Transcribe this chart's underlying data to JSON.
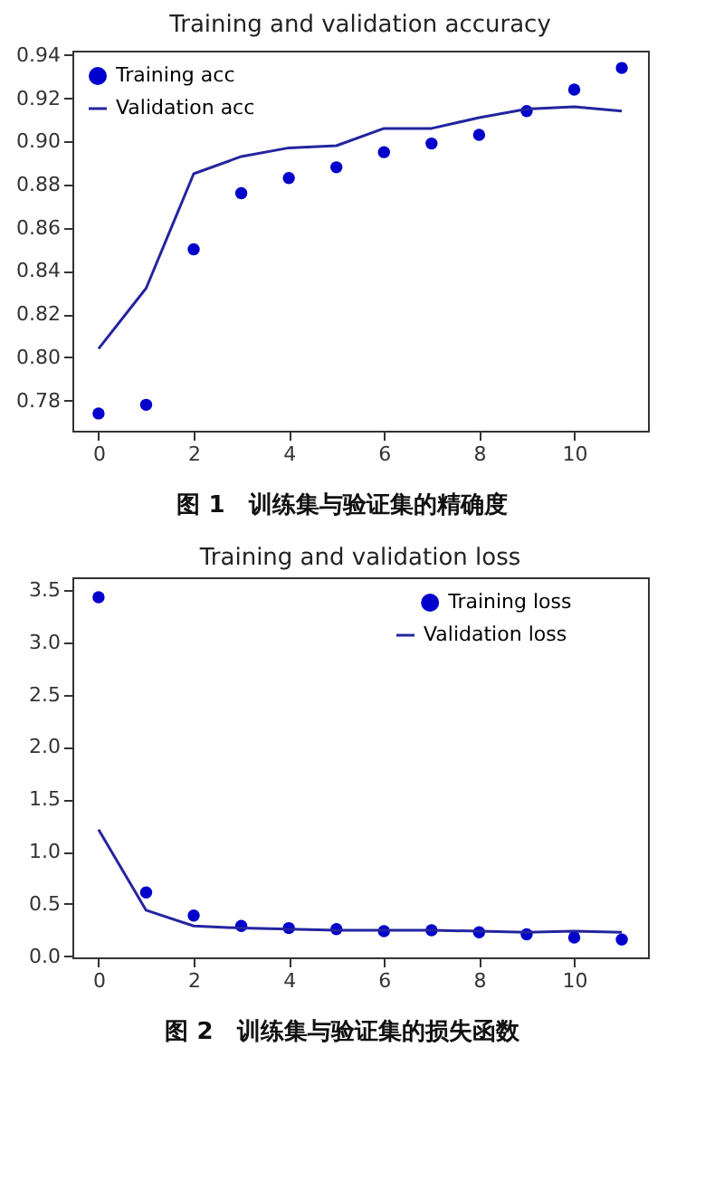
{
  "chart_data": [
    {
      "type": "line",
      "title": "Training and validation accuracy",
      "x": [
        0,
        1,
        2,
        3,
        4,
        5,
        6,
        7,
        8,
        9,
        10,
        11
      ],
      "series": [
        {
          "name": "Training acc",
          "type": "scatter",
          "marker": "circle",
          "color": "#0000cc",
          "values": [
            0.774,
            0.778,
            0.85,
            0.876,
            0.883,
            0.888,
            0.895,
            0.899,
            0.903,
            0.914,
            0.924,
            0.934
          ]
        },
        {
          "name": "Validation acc",
          "marker": "none",
          "color": "#2424a0",
          "values": [
            0.804,
            0.832,
            0.885,
            0.893,
            0.897,
            0.898,
            0.906,
            0.906,
            0.911,
            0.915,
            0.916,
            0.914
          ]
        }
      ],
      "xlim": [
        -0.55,
        11.55
      ],
      "xticks": [
        0,
        2,
        4,
        6,
        8,
        10
      ],
      "ylim": [
        0.766,
        0.942
      ],
      "yticks": [
        0.78,
        {
          "value": 0.8,
          "label": "0.80"
        },
        0.82,
        0.84,
        0.86,
        0.88,
        {
          "value": 0.9,
          "label": "0.90"
        },
        0.92,
        0.94
      ],
      "grid": false,
      "legend": "top left",
      "annotations": [
        "图 1　训练集与验证集的精确度"
      ]
    },
    {
      "type": "line",
      "title": "Training and validation loss",
      "x": [
        0,
        1,
        2,
        3,
        4,
        5,
        6,
        7,
        8,
        9,
        10,
        11
      ],
      "series": [
        {
          "name": "Training loss",
          "type": "scatter",
          "marker": "circle",
          "color": "#0000cc",
          "values": [
            3.43,
            0.61,
            0.39,
            0.29,
            0.27,
            0.26,
            0.24,
            0.25,
            0.23,
            0.21,
            0.18,
            0.16
          ]
        },
        {
          "name": "Validation loss",
          "marker": "none",
          "color": "#2424a0",
          "values": [
            1.21,
            0.44,
            0.29,
            0.27,
            0.26,
            0.25,
            0.25,
            0.25,
            0.24,
            0.23,
            0.24,
            0.23
          ]
        }
      ],
      "xlim": [
        -0.55,
        11.55
      ],
      "xticks": [
        0,
        2,
        4,
        6,
        8,
        10
      ],
      "ylim": [
        -0.01,
        3.62
      ],
      "yticks": [
        {
          "value": 0,
          "label": "0.0"
        },
        0.5,
        {
          "value": 1,
          "label": "1.0"
        },
        1.5,
        {
          "value": 2,
          "label": "2.0"
        },
        2.5,
        {
          "value": 3,
          "label": "3.0"
        },
        3.5
      ],
      "grid": false,
      "legend": "top right",
      "annotations": [
        "图 2　训练集与验证集的损失函数"
      ]
    }
  ]
}
